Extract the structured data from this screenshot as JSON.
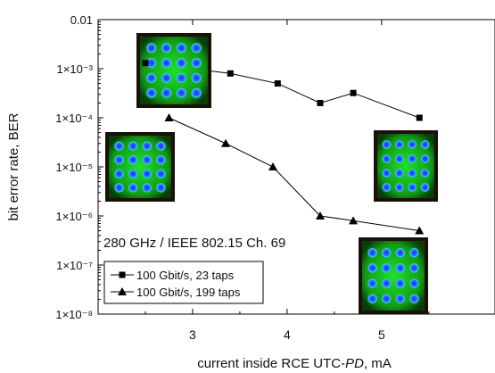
{
  "chart_data": {
    "type": "line",
    "title": "",
    "annotation": "280 GHz / IEEE 802.15 Ch. 69",
    "xlabel_prefix": "current inside RCE UTC-",
    "xlabel_italic": "PD",
    "xlabel_suffix": ", mA",
    "ylabel": "bit error rate, BER",
    "xlim": [
      2.0,
      6.2
    ],
    "ylim": [
      1e-08,
      0.01
    ],
    "yscale": "log",
    "xticks": [
      3,
      4,
      5
    ],
    "yticks": [
      0.01,
      0.001,
      0.0001,
      1e-05,
      1e-06,
      1e-07,
      1e-08
    ],
    "ytick_labels": [
      "0.01",
      "1×10⁻³",
      "1×10⁻⁴",
      "1×10⁻⁵",
      "1×10⁻⁶",
      "1×10⁻⁷",
      "1×10⁻⁸"
    ],
    "legend_position": "bottom-left",
    "series": [
      {
        "name": "100 Gbit/s, 23 taps",
        "marker": "square",
        "x": [
          2.5,
          3.4,
          3.9,
          4.35,
          4.7,
          5.4
        ],
        "y": [
          0.0013,
          0.0008,
          0.0005,
          0.0002,
          0.00032,
          0.0001
        ]
      },
      {
        "name": "100 Gbit/s, 199 taps",
        "marker": "triangle",
        "x": [
          2.75,
          3.35,
          3.85,
          4.35,
          4.7,
          5.4
        ],
        "y": [
          0.0001,
          3e-05,
          1e-05,
          1e-06,
          8e-07,
          5e-07
        ]
      }
    ],
    "inset_images": [
      {
        "name": "constellation-23taps-low",
        "kind": "16-QAM constellation"
      },
      {
        "name": "constellation-199taps-low",
        "kind": "16-QAM constellation"
      },
      {
        "name": "constellation-23taps-high",
        "kind": "16-QAM constellation"
      },
      {
        "name": "constellation-199taps-high",
        "kind": "16-QAM constellation"
      }
    ]
  }
}
